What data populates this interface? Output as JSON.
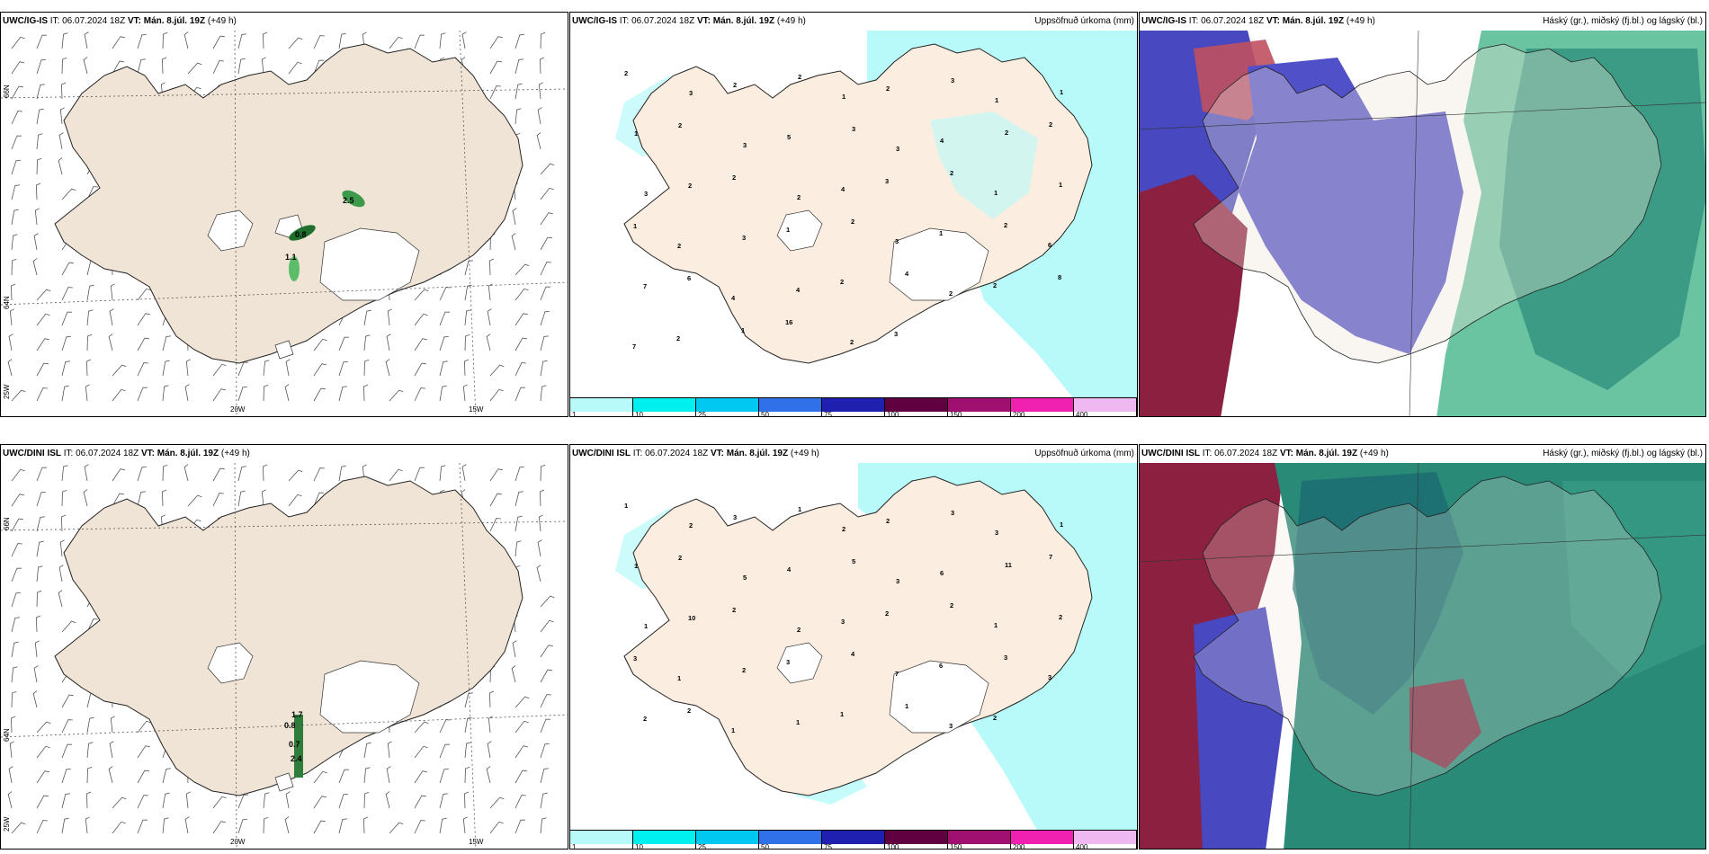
{
  "rows": [
    {
      "model": "UWC/IG-IS",
      "it_label": "IT:",
      "it_value": "06.07.2024 18Z",
      "vt_label": "VT:",
      "vt_value": "Mán. 8.júl. 19Z",
      "lead": "(+49 h)",
      "wind_values": [
        "2.5",
        "0.8",
        "1.1"
      ]
    },
    {
      "model": "UWC/DINI ISL",
      "it_label": "IT:",
      "it_value": "06.07.2024 18Z",
      "vt_label": "VT:",
      "vt_value": "Mán. 8.júl. 19Z",
      "lead": "(+49 h)",
      "wind_values": [
        "1.7",
        "0.8",
        "0.7",
        "2.4"
      ]
    }
  ],
  "precip_title": "Uppsöfnuð úrkoma (mm)",
  "cloud_title": "Háský (gr.), miðský (fj.bl.) og lágský (bl.)",
  "axis_labels": {
    "lat_66": "66N",
    "lat_64": "64N",
    "lon_25": "25W",
    "lon_20": "20W",
    "lon_15": "15W"
  },
  "colorbar": {
    "ticks": [
      "1",
      "10",
      "25",
      "50",
      "75",
      "100",
      "150",
      "200",
      "400"
    ],
    "colors": [
      "#b8fafa",
      "#00f0f0",
      "#00c8f0",
      "#3070e8",
      "#2020b0",
      "#600040",
      "#a01070",
      "#f020b0",
      "#f0b8f0"
    ]
  },
  "precip_labels_row1": [
    "2",
    "3",
    "2",
    "2",
    "1",
    "2",
    "3",
    "1",
    "1",
    "1",
    "2",
    "3",
    "5",
    "3",
    "3",
    "4",
    "2",
    "2",
    "3",
    "2",
    "2",
    "2",
    "4",
    "3",
    "2",
    "1",
    "1",
    "1",
    "2",
    "3",
    "1",
    "2",
    "3",
    "1",
    "2",
    "6",
    "7",
    "6",
    "4",
    "4",
    "2",
    "4",
    "2",
    "2",
    "8",
    "7",
    "2",
    "1",
    "16",
    "2",
    "3"
  ],
  "precip_labels_row2": [
    "1",
    "2",
    "3",
    "1",
    "2",
    "2",
    "3",
    "3",
    "1",
    "1",
    "2",
    "5",
    "4",
    "5",
    "3",
    "6",
    "11",
    "7",
    "1",
    "10",
    "2",
    "2",
    "3",
    "2",
    "2",
    "1",
    "2",
    "3",
    "1",
    "2",
    "3",
    "4",
    "7",
    "6",
    "3",
    "3",
    "2",
    "2",
    "1",
    "1",
    "1",
    "1",
    "3",
    "2"
  ]
}
